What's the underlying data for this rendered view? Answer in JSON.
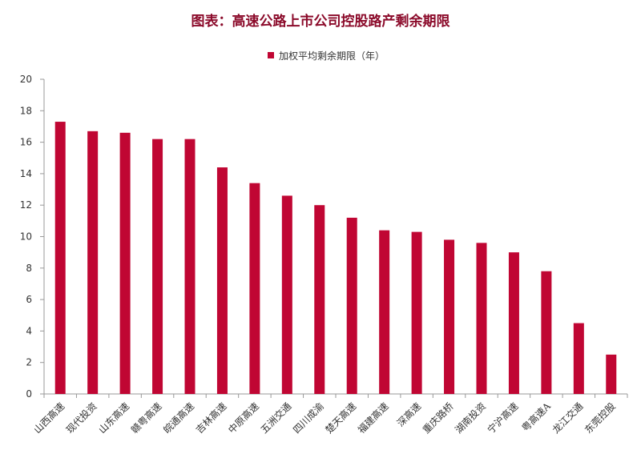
{
  "chart_data": {
    "type": "bar",
    "title": "图表：高速公路上市公司控股路产剩余期限",
    "categories": [
      "山西高速",
      "现代投资",
      "山东高速",
      "赣粤高速",
      "皖通高速",
      "吉林高速",
      "中原高速",
      "五洲交通",
      "四川成渝",
      "楚天高速",
      "福建高速",
      "深高速",
      "重庆路桥",
      "湖南投资",
      "宁沪高速",
      "粤高速A",
      "龙江交通",
      "东莞控股"
    ],
    "series": [
      {
        "name": "加权平均剩余期限（年）",
        "values": [
          17.3,
          16.7,
          16.6,
          16.2,
          16.2,
          14.4,
          13.4,
          12.6,
          12.0,
          11.2,
          10.4,
          10.3,
          9.8,
          9.6,
          9.0,
          7.8,
          4.5,
          2.5
        ]
      }
    ],
    "yticks": [
      "0",
      "2",
      "4",
      "6",
      "8",
      "10",
      "12",
      "14",
      "16",
      "18",
      "20"
    ],
    "ylim": [
      0,
      20
    ],
    "grid": false,
    "legend_position": "top-center",
    "bar_color": "#c00633",
    "title_color": "#8b0a2a",
    "axis_color": "#999999"
  }
}
